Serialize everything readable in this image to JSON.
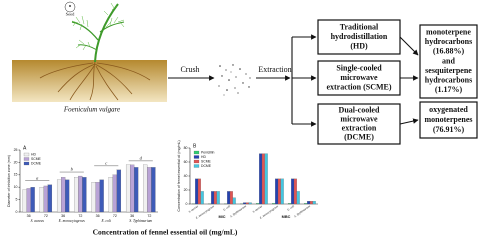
{
  "seed_label": "Seed",
  "plant_label": "Foeniculum vulgare",
  "steps": [
    "Crush",
    "Extraction"
  ],
  "methods": [
    {
      "lines": [
        "Traditional",
        "hydrodistillation",
        "(HD)"
      ]
    },
    {
      "lines": [
        "Single-cooled",
        "microwave",
        "extraction (SCME)"
      ]
    },
    {
      "lines": [
        "Dual-cooled",
        "microwave",
        "extraction",
        "(DCME)"
      ]
    }
  ],
  "results": [
    {
      "lines": [
        "monoterpene",
        "hydrocarbons",
        "(16.88%)",
        "and",
        "sesquiterpene",
        "hydrocarbons",
        "(1.17%)"
      ]
    },
    {
      "lines": [
        "oxygenated",
        "monoterpenes",
        "(76.91%)"
      ]
    }
  ],
  "panel_a": {
    "label": "A",
    "y_label": "Diameter of inhibition zone (mm)",
    "ylim": [
      0,
      25
    ],
    "yticks": [
      0,
      5,
      10,
      15,
      20,
      25
    ],
    "groups": [
      "S. aureus",
      "E. monocytogenes",
      "E. coli",
      "S. Typhimurium"
    ],
    "subgroups": [
      "36",
      "72"
    ],
    "letters": [
      "a",
      "b",
      "c",
      "d"
    ],
    "series": [
      {
        "name": "HD",
        "color": "#f0f0f0",
        "values": [
          9,
          10,
          13,
          14,
          12,
          14,
          19,
          19
        ]
      },
      {
        "name": "SCME",
        "color": "#b9a3d6",
        "values": [
          9.5,
          10.5,
          14,
          14.5,
          12,
          15,
          19,
          18
        ]
      },
      {
        "name": "DCME",
        "color": "#3e5bb8",
        "values": [
          10,
          11,
          13,
          14,
          13,
          17,
          18,
          18
        ]
      }
    ]
  },
  "panel_b": {
    "label": "B",
    "y_label": "Concentration of fennel essential oil (mg/mL)",
    "ylim": [
      0,
      80
    ],
    "yticks": [
      0,
      20,
      40,
      60,
      80
    ],
    "group_labels": [
      "MIC",
      "MBC"
    ],
    "categories": [
      "S. aureus",
      "E. monocytogenes",
      "E. coli",
      "S. Typhimurium",
      "S. aureus",
      "E. monocytogenes",
      "E. coli",
      "S. Typhimurium"
    ],
    "series": [
      {
        "name": "Penicillin",
        "color": "#2ecc71",
        "values": [
          0.5,
          0.5,
          0.5,
          0.5,
          1,
          1,
          1,
          1
        ]
      },
      {
        "name": "HD",
        "color": "#2541b2",
        "values": [
          36,
          18,
          18,
          2,
          72,
          36,
          36,
          4
        ]
      },
      {
        "name": "SCME",
        "color": "#e05555",
        "values": [
          36,
          18,
          18,
          2,
          72,
          36,
          36,
          4
        ]
      },
      {
        "name": "DCME",
        "color": "#45c6e0",
        "values": [
          18,
          18,
          9,
          2,
          72,
          36,
          18,
          4
        ]
      }
    ]
  },
  "x_caption": "Concentration of fennel essential oil (mg/mL)"
}
